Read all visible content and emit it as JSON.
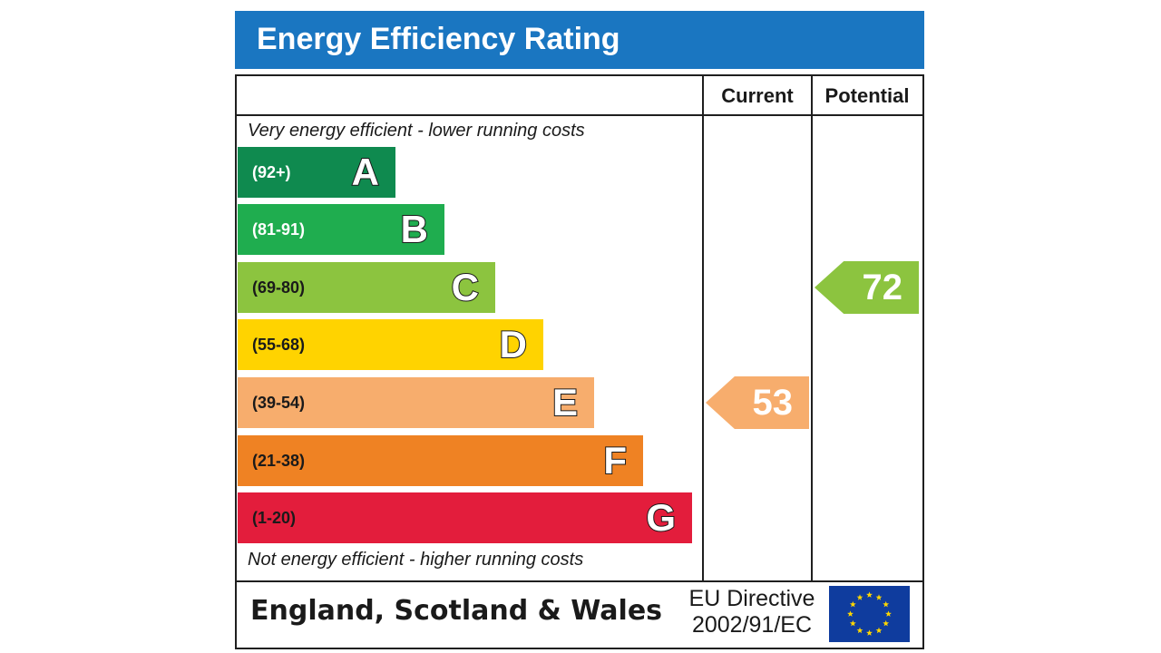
{
  "title": "Energy Efficiency Rating",
  "header": {
    "current": "Current",
    "potential": "Potential"
  },
  "captions": {
    "top": "Very energy efficient - lower running costs",
    "bottom": "Not energy efficient - higher running costs"
  },
  "chart_data": {
    "type": "bar",
    "title": "Energy Efficiency Rating",
    "categories": [
      "A",
      "B",
      "C",
      "D",
      "E",
      "F",
      "G"
    ],
    "ranges": [
      "(92+)",
      "(81-91)",
      "(69-80)",
      "(55-68)",
      "(39-54)",
      "(21-38)",
      "(1-20)"
    ],
    "colors": [
      "#0f8a4f",
      "#1fad4f",
      "#8cc43f",
      "#ffd300",
      "#f7ad6d",
      "#ef8223",
      "#e31d3c"
    ],
    "range_text_colors": [
      "#ffffff",
      "#ffffff",
      "#1a1a1a",
      "#1a1a1a",
      "#1a1a1a",
      "#1a1a1a",
      "#1a1a1a"
    ],
    "current": {
      "label": "Current",
      "value": 53,
      "band": "E",
      "color": "#f7ad6d"
    },
    "potential": {
      "label": "Potential",
      "value": 72,
      "band": "C",
      "color": "#8cc43f"
    }
  },
  "footer": {
    "country": "England, Scotland & Wales",
    "directive_line1": "EU Directive",
    "directive_line2": "2002/91/EC"
  },
  "colors": {
    "title_bar": "#1a76c1",
    "eu_blue": "#0f3c9e",
    "eu_star": "#ffd700"
  }
}
